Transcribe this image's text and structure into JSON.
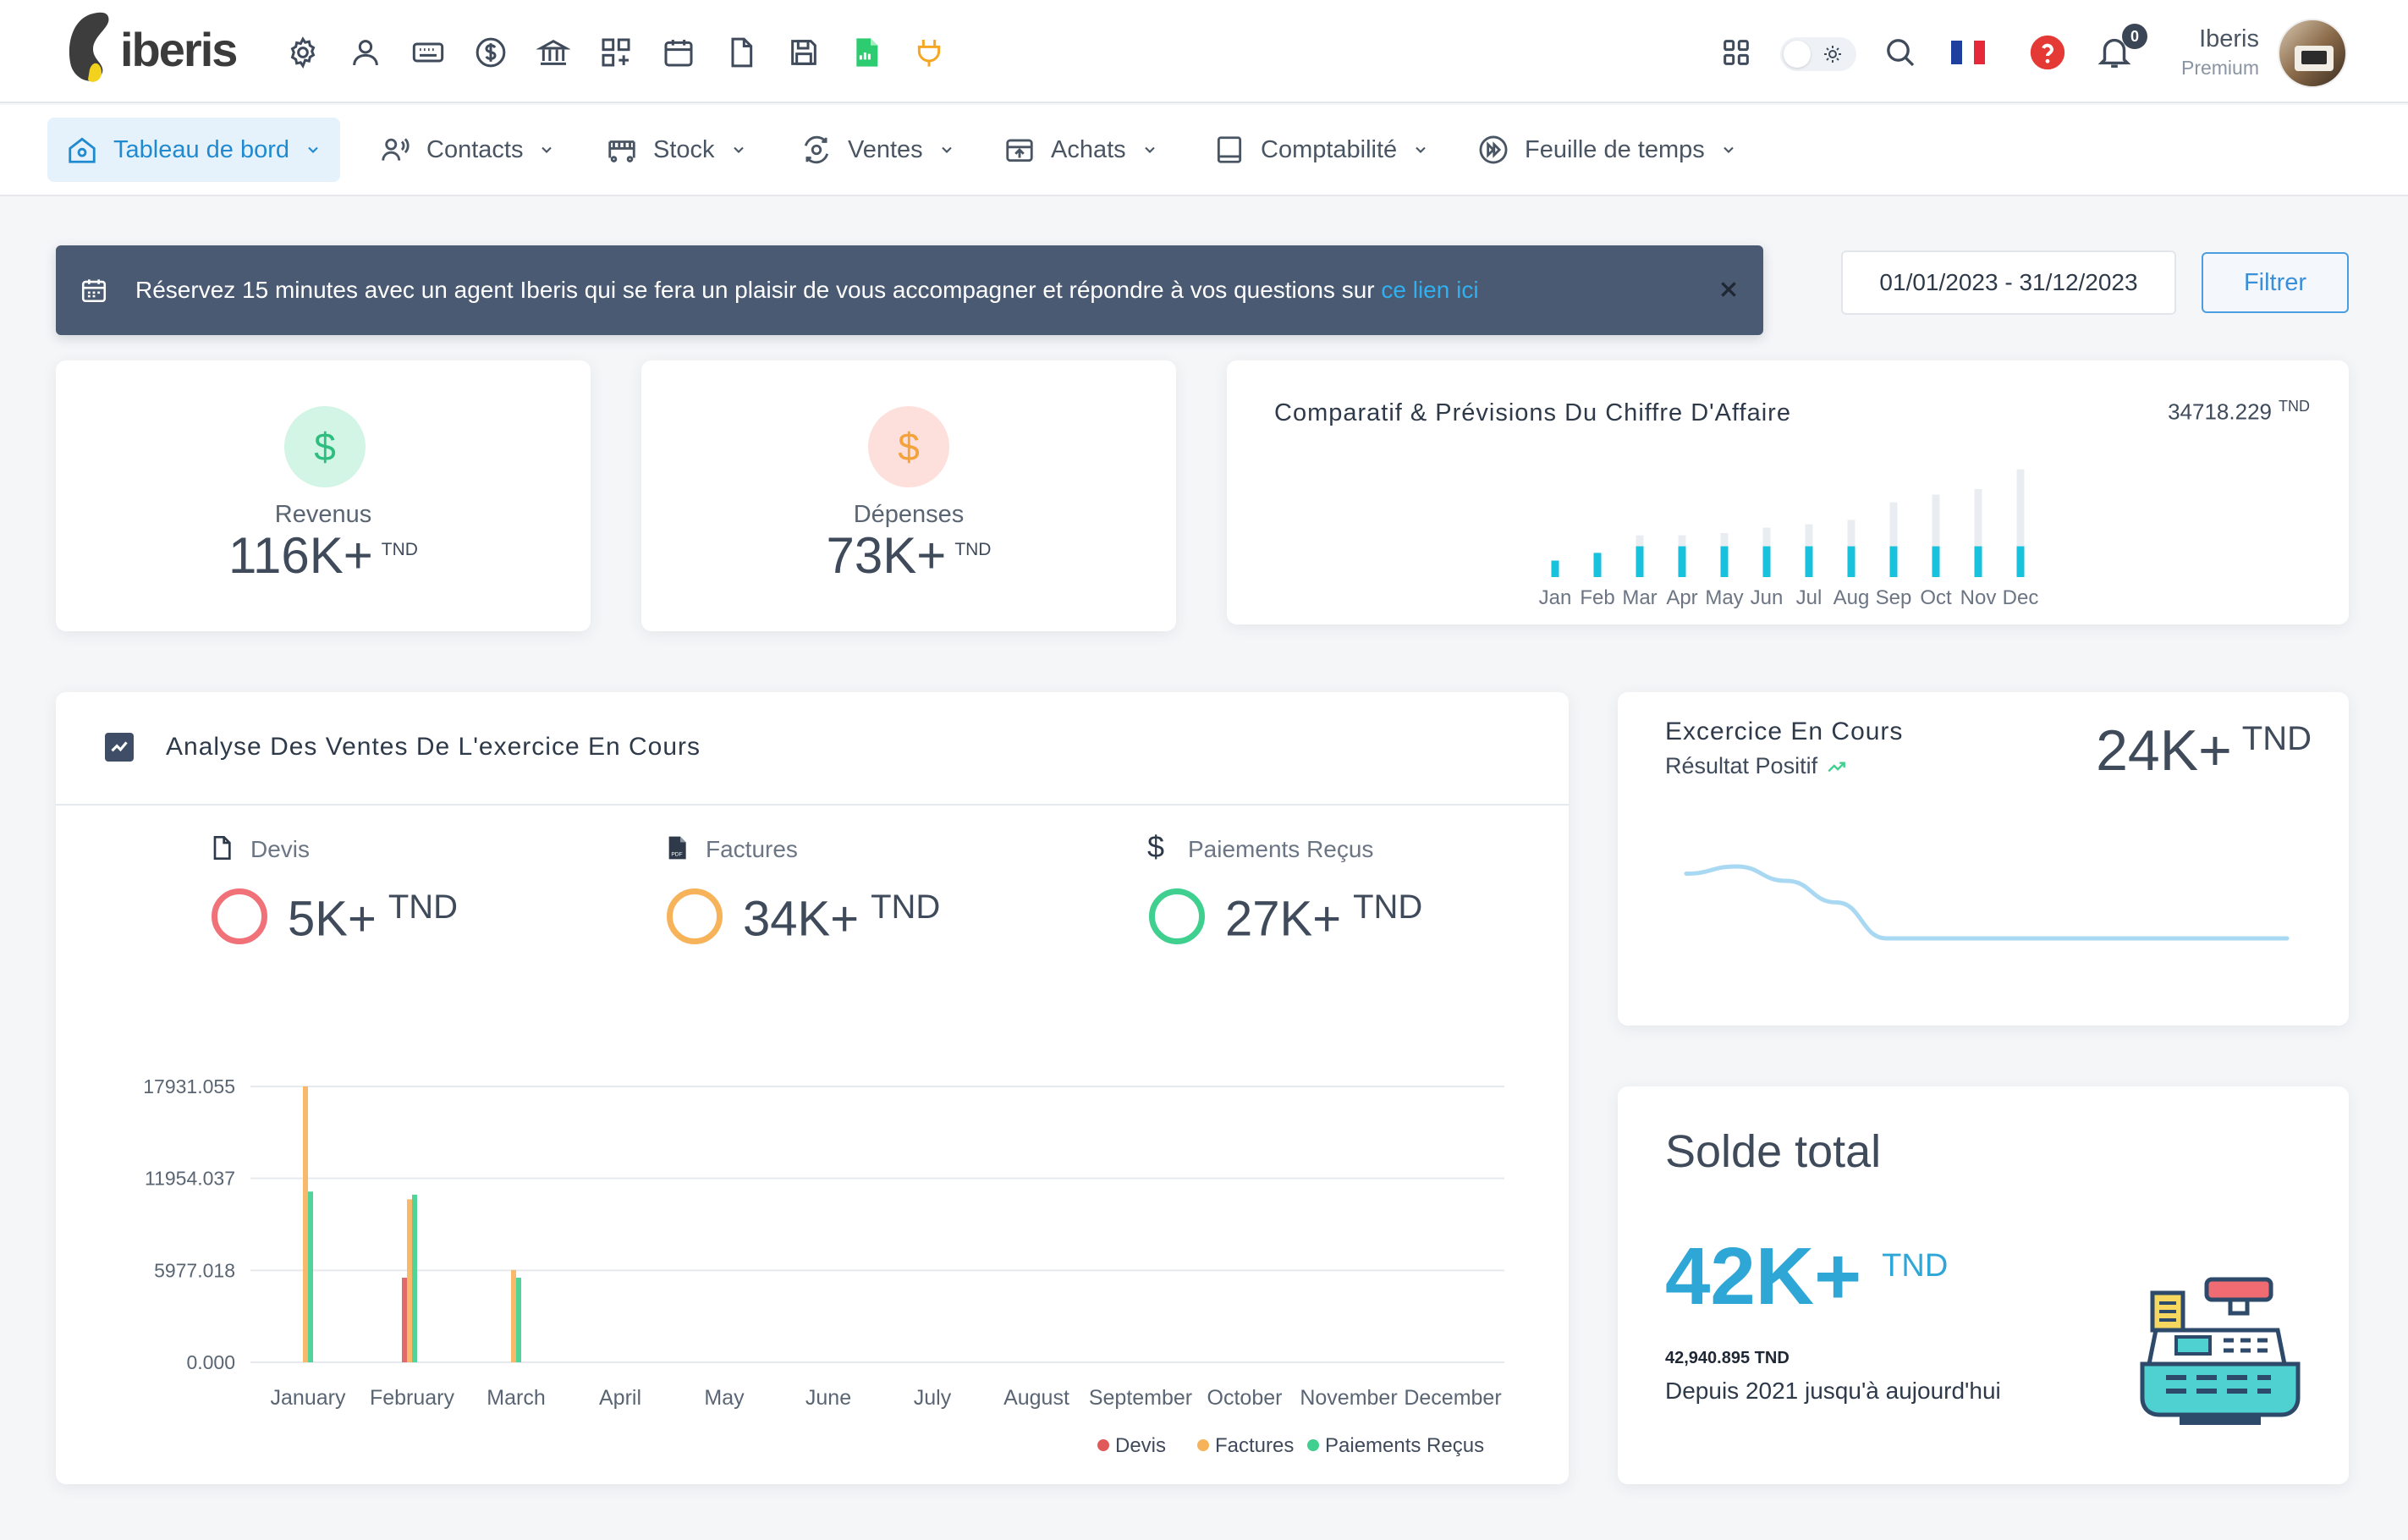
{
  "app": {
    "brand": "iberis"
  },
  "topbar": {
    "icons": [
      "gear-icon",
      "user-icon",
      "keyboard-icon",
      "dollar-circle-icon",
      "bank-icon",
      "grid-plus-icon",
      "calendar-icon",
      "document-icon",
      "save-icon",
      "spreadsheet-icon",
      "plug-icon"
    ],
    "notifications_count": "0",
    "user_name": "Iberis",
    "user_plan": "Premium",
    "accent": "#1f8ad0"
  },
  "nav": {
    "items": [
      {
        "label": "Tableau de bord",
        "icon": "home-icon",
        "active": true
      },
      {
        "label": "Contacts",
        "icon": "contacts-icon"
      },
      {
        "label": "Stock",
        "icon": "forklift-icon"
      },
      {
        "label": "Ventes",
        "icon": "sales-icon"
      },
      {
        "label": "Achats",
        "icon": "purchase-box-icon"
      },
      {
        "label": "Comptabilité",
        "icon": "ledger-icon"
      },
      {
        "label": "Feuille de temps",
        "icon": "fast-forward-icon"
      }
    ]
  },
  "banner": {
    "text": "Réservez 15 minutes avec un agent Iberis qui se fera un plaisir de vous accompagner et répondre à vos questions sur ",
    "link": "ce lien ici",
    "bg": "#4a5a72"
  },
  "filter": {
    "date_range": "01/01/2023 - 31/12/2023",
    "button": "Filtrer"
  },
  "revenus": {
    "label": "Revenus",
    "value": "116K+",
    "unit": "TND"
  },
  "depenses": {
    "label": "Dépenses",
    "value": "73K+",
    "unit": "TND"
  },
  "comparatif": {
    "title": "Comparatif & Prévisions Du Chiffre D'Affaire",
    "value": "34718.229",
    "unit": "TND",
    "chart_data": {
      "type": "bar",
      "categories": [
        "Jan",
        "Feb",
        "Mar",
        "Apr",
        "May",
        "Jun",
        "Jul",
        "Aug",
        "Sep",
        "Oct",
        "Nov",
        "Dec"
      ],
      "series": [
        {
          "values": [
            0.15,
            0.22,
            0.28,
            0.28,
            0.28,
            0.28,
            0.28,
            0.28,
            0.28,
            0.28,
            0.28,
            0.28
          ]
        },
        {
          "values": [
            0.15,
            0.22,
            0.38,
            0.38,
            0.4,
            0.45,
            0.48,
            0.52,
            0.68,
            0.75,
            0.8,
            0.98
          ]
        }
      ],
      "colors": [
        "#19c2dc",
        "#e9edf1"
      ]
    }
  },
  "analyse": {
    "title": "Analyse Des Ventes De L'exercice En Cours",
    "kpis": [
      {
        "label": "Devis",
        "value": "5K+",
        "unit": "TND",
        "icon": "document-icon",
        "color": "#f07178"
      },
      {
        "label": "Factures",
        "value": "34K+",
        "unit": "TND",
        "icon": "pdf-icon",
        "color": "#f7b35a"
      },
      {
        "label": "Paiements Reçus",
        "value": "27K+",
        "unit": "TND",
        "icon": "dollar-icon",
        "color": "#3fcf8e"
      }
    ],
    "chart_data": {
      "type": "bar",
      "categories": [
        "January",
        "February",
        "March",
        "April",
        "May",
        "June",
        "July",
        "August",
        "September",
        "October",
        "November",
        "December"
      ],
      "y_ticks": [
        "17931.055",
        "11954.037",
        "5977.018",
        "0.000"
      ],
      "ylim": [
        0,
        17931.055
      ],
      "series": [
        {
          "name": "Devis",
          "color": "#e05a5a",
          "values": [
            0,
            5500,
            0,
            0,
            0,
            0,
            0,
            0,
            0,
            0,
            0,
            0
          ]
        },
        {
          "name": "Factures",
          "color": "#f7b35a",
          "values": [
            17931,
            10600,
            6000,
            0,
            0,
            0,
            0,
            0,
            0,
            0,
            0,
            0
          ]
        },
        {
          "name": "Paiements Reçus",
          "color": "#3fcf8e",
          "values": [
            11100,
            10900,
            5500,
            0,
            0,
            0,
            0,
            0,
            0,
            0,
            0,
            0
          ]
        }
      ],
      "legend": "bottom-right"
    }
  },
  "exercice": {
    "title": "Excercice En Cours",
    "subtitle": "Résultat Positif",
    "value": "24K+",
    "unit": "TND",
    "chart_data": {
      "type": "line",
      "values": [
        0.75,
        0.8,
        0.7,
        0.55,
        0.3,
        0.3,
        0.3,
        0.3,
        0.3,
        0.3,
        0.3,
        0.3,
        0.3
      ],
      "color": "#a9d8f2"
    }
  },
  "solde": {
    "title": "Solde total",
    "value": "42K+",
    "unit": "TND",
    "exact": "42,940.895 TND",
    "since": "Depuis 2021 jusqu'à aujourd'hui",
    "illustration": "cash-register-icon"
  }
}
